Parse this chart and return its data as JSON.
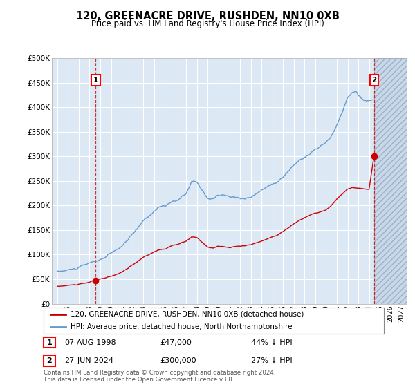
{
  "title": "120, GREENACRE DRIVE, RUSHDEN, NN10 0XB",
  "subtitle": "Price paid vs. HM Land Registry's House Price Index (HPI)",
  "legend_line1": "120, GREENACRE DRIVE, RUSHDEN, NN10 0XB (detached house)",
  "legend_line2": "HPI: Average price, detached house, North Northamptonshire",
  "footnote": "Contains HM Land Registry data © Crown copyright and database right 2024.\nThis data is licensed under the Open Government Licence v3.0.",
  "annotation1": {
    "label": "1",
    "date": "07-AUG-1998",
    "price": "£47,000",
    "note": "44% ↓ HPI"
  },
  "annotation2": {
    "label": "2",
    "date": "27-JUN-2024",
    "price": "£300,000",
    "note": "27% ↓ HPI"
  },
  "red_line_color": "#cc0000",
  "blue_line_color": "#6699cc",
  "plot_bg_color": "#dce9f5",
  "fig_bg_color": "#ffffff",
  "grid_color": "#ffffff",
  "ylim": [
    0,
    500000
  ],
  "yticks": [
    0,
    50000,
    100000,
    150000,
    200000,
    250000,
    300000,
    350000,
    400000,
    450000,
    500000
  ],
  "ytick_labels": [
    "£0",
    "£50K",
    "£100K",
    "£150K",
    "£200K",
    "£250K",
    "£300K",
    "£350K",
    "£400K",
    "£450K",
    "£500K"
  ],
  "sale1_x": 1998.58,
  "sale1_y": 47000,
  "sale2_x": 2024.49,
  "sale2_y": 300000,
  "hatch_start": 2024.49,
  "xmin": 1994.5,
  "xmax": 2027.5
}
